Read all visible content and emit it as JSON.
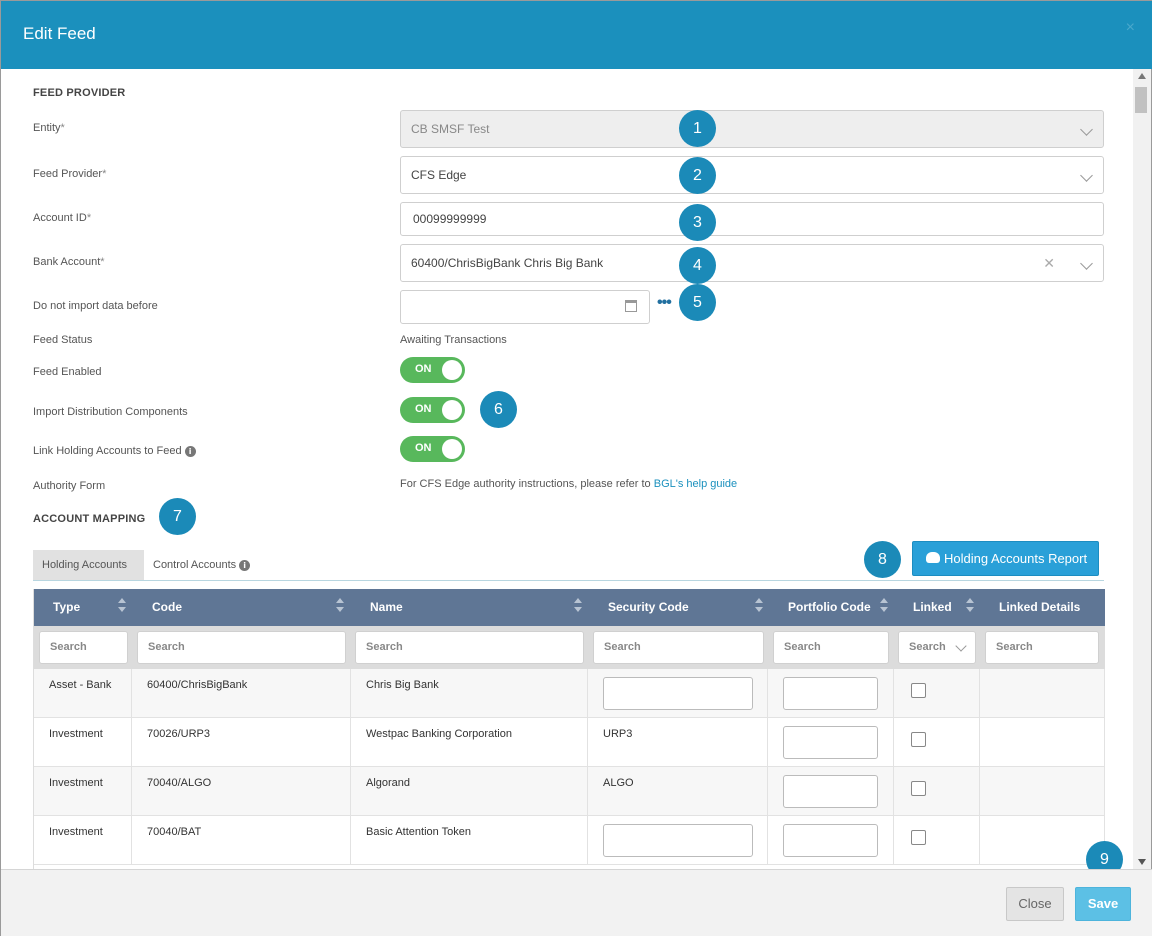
{
  "dialog": {
    "title": "Edit Feed",
    "close_glyph": "×"
  },
  "feed_provider": {
    "section_title": "FEED PROVIDER",
    "entity": {
      "label": "Entity",
      "value": "CB SMSF Test"
    },
    "provider": {
      "label": "Feed Provider",
      "value": "CFS Edge"
    },
    "account_id": {
      "label": "Account ID",
      "value": "00099999999"
    },
    "bank_account": {
      "label": "Bank Account",
      "value": "60400/ChrisBigBank Chris Big Bank"
    },
    "import_before": {
      "label": "Do not import data before",
      "value": ""
    },
    "feed_status": {
      "label": "Feed Status",
      "value": "Awaiting Transactions"
    },
    "feed_enabled": {
      "label": "Feed Enabled",
      "toggle": "ON"
    },
    "import_distribution": {
      "label": "Import Distribution Components",
      "toggle": "ON"
    },
    "link_holding": {
      "label": "Link Holding Accounts to Feed",
      "toggle": "ON"
    },
    "authority_form": {
      "label": "Authority Form",
      "text": "For CFS Edge authority instructions, please refer to ",
      "link": "BGL's help guide"
    },
    "required_marker": "*"
  },
  "account_mapping": {
    "section_title": "ACCOUNT MAPPING",
    "tabs": [
      "Holding Accounts",
      "Control Accounts"
    ],
    "report_button": "Holding Accounts Report",
    "columns": [
      "Type",
      "Code",
      "Name",
      "Security Code",
      "Portfolio Code",
      "Linked",
      "Linked Details"
    ],
    "filter_placeholder": "Search",
    "rows": [
      {
        "type": "Asset - Bank",
        "code": "60400/ChrisBigBank",
        "name": "Chris Big Bank",
        "security_code": "",
        "linked": false
      },
      {
        "type": "Investment",
        "code": "70026/URP3",
        "name": "Westpac Banking Corporation",
        "security_code": "URP3",
        "linked": false
      },
      {
        "type": "Investment",
        "code": "70040/ALGO",
        "name": "Algorand",
        "security_code": "ALGO",
        "linked": false
      },
      {
        "type": "Investment",
        "code": "70040/BAT",
        "name": "Basic Attention Token",
        "security_code": "",
        "linked": false
      }
    ]
  },
  "badges": [
    "1",
    "2",
    "3",
    "4",
    "5",
    "6",
    "7",
    "8",
    "9"
  ],
  "footer": {
    "close": "Close",
    "save": "Save"
  },
  "colors": {
    "header": "#1b90bd",
    "toggle_on": "#58b85c",
    "grid_header": "#5f7695",
    "badge": "#1b8ab8",
    "report_button": "#2aa0d8",
    "save_button": "#5cc0e5"
  },
  "icons": [
    "close-icon",
    "chevron-down-icon",
    "clear-icon",
    "calendar-icon",
    "more-icon",
    "info-icon",
    "cloud-download-icon",
    "sort-icon",
    "scroll-up-icon",
    "scroll-down-icon"
  ]
}
